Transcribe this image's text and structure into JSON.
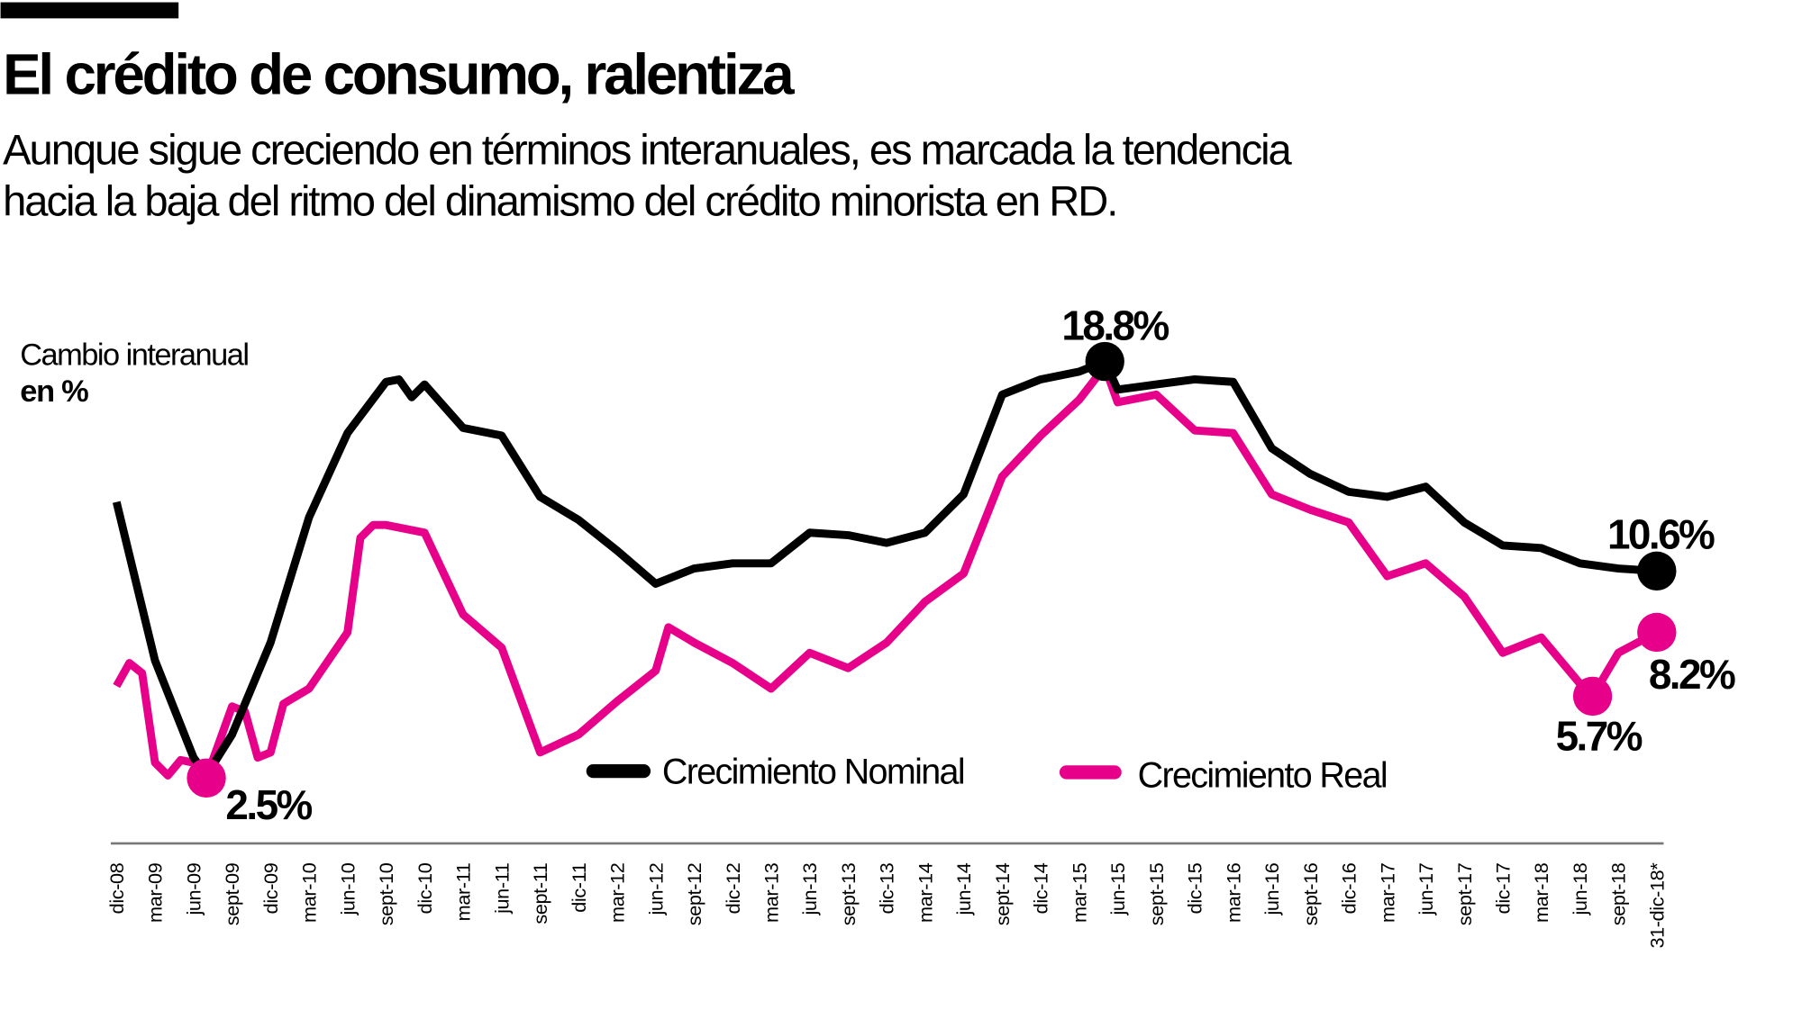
{
  "header": {
    "title": "El crédito de consumo, ralentiza",
    "subtitle_lines": [
      "Aunque sigue creciendo en términos interanuales, es marcada la tendencia",
      "hacia la baja del ritmo del dinamismo del crédito minorista en RD."
    ]
  },
  "colors": {
    "nominal": "#000000",
    "real": "#e6008a",
    "axis": "#777777"
  },
  "chart_data": {
    "type": "line",
    "title": "El crédito de consumo, ralentiza",
    "ylabel_line1": "Cambio interanual",
    "ylabel_line2": "en %",
    "x_tick_labels": [
      "dic-08",
      "mar-09",
      "jun-09",
      "sept-09",
      "dic-09",
      "mar-10",
      "jun-10",
      "sept-10",
      "dic-10",
      "mar-11",
      "jun-11",
      "sept-11",
      "dic-11",
      "mar-12",
      "jun-12",
      "sept-12",
      "dic-12",
      "mar-13",
      "jun-13",
      "sept-13",
      "dic-13",
      "mar-14",
      "jun-14",
      "sept-14",
      "dic-14",
      "mar-15",
      "jun-15",
      "sept-15",
      "dic-15",
      "mar-16",
      "jun-16",
      "sept-16",
      "dic-16",
      "mar-17",
      "jun-17",
      "sept-17",
      "dic-17",
      "mar-18",
      "jun-18",
      "sept-18",
      "31-dic-18*"
    ],
    "xlim": [
      "dic-08",
      "dic-18"
    ],
    "ylim": [
      1,
      20
    ],
    "grid": false,
    "legend": "bottom-center",
    "series": [
      {
        "name": "Crecimiento Nominal",
        "color": "#000000",
        "points": [
          [
            "dic-08",
            13.3
          ],
          [
            "mar-09",
            7.1
          ],
          [
            "jun-09",
            3.3
          ],
          [
            "jul-09",
            2.6
          ],
          [
            "sept-09",
            4.2
          ],
          [
            "dic-09",
            7.8
          ],
          [
            "mar-10",
            12.7
          ],
          [
            "jun-10",
            16.0
          ],
          [
            "sept-10",
            18.0
          ],
          [
            "oct-10",
            18.1
          ],
          [
            "nov-10",
            17.4
          ],
          [
            "dic-10",
            17.9
          ],
          [
            "mar-11",
            16.2
          ],
          [
            "jun-11",
            15.9
          ],
          [
            "sept-11",
            13.5
          ],
          [
            "dic-11",
            12.6
          ],
          [
            "mar-12",
            11.4
          ],
          [
            "jun-12",
            10.1
          ],
          [
            "sept-12",
            10.7
          ],
          [
            "dic-12",
            10.9
          ],
          [
            "mar-13",
            10.9
          ],
          [
            "jun-13",
            12.1
          ],
          [
            "sept-13",
            12.0
          ],
          [
            "dic-13",
            11.7
          ],
          [
            "mar-14",
            12.1
          ],
          [
            "jun-14",
            13.6
          ],
          [
            "sept-14",
            17.5
          ],
          [
            "dic-14",
            18.1
          ],
          [
            "mar-15",
            18.4
          ],
          [
            "may-15",
            18.8
          ],
          [
            "jun-15",
            17.7
          ],
          [
            "sept-15",
            17.9
          ],
          [
            "dic-15",
            18.1
          ],
          [
            "mar-16",
            18.0
          ],
          [
            "jun-16",
            15.4
          ],
          [
            "sept-16",
            14.4
          ],
          [
            "dic-16",
            13.7
          ],
          [
            "mar-17",
            13.5
          ],
          [
            "jun-17",
            13.9
          ],
          [
            "sept-17",
            12.5
          ],
          [
            "dic-17",
            11.6
          ],
          [
            "mar-18",
            11.5
          ],
          [
            "jun-18",
            10.9
          ],
          [
            "sept-18",
            10.7
          ],
          [
            "dic-18",
            10.6
          ]
        ]
      },
      {
        "name": "Crecimiento Real",
        "color": "#e6008a",
        "points": [
          [
            "dic-08",
            6.1
          ],
          [
            "ene-09",
            7.0
          ],
          [
            "feb-09",
            6.6
          ],
          [
            "mar-09",
            3.1
          ],
          [
            "abr-09",
            2.6
          ],
          [
            "may-09",
            3.2
          ],
          [
            "jun-09",
            3.1
          ],
          [
            "jul-09",
            2.5
          ],
          [
            "ago-09",
            3.9
          ],
          [
            "sept-09",
            5.3
          ],
          [
            "oct-09",
            5.1
          ],
          [
            "nov-09",
            3.3
          ],
          [
            "dic-09",
            3.5
          ],
          [
            "ene-10",
            5.4
          ],
          [
            "mar-10",
            6.0
          ],
          [
            "jun-10",
            8.2
          ],
          [
            "jul-10",
            11.9
          ],
          [
            "ago-10",
            12.4
          ],
          [
            "sept-10",
            12.4
          ],
          [
            "dic-10",
            12.1
          ],
          [
            "mar-11",
            8.9
          ],
          [
            "jun-11",
            7.6
          ],
          [
            "sept-11",
            3.5
          ],
          [
            "dic-11",
            4.2
          ],
          [
            "mar-12",
            5.5
          ],
          [
            "jun-12",
            6.7
          ],
          [
            "jul-12",
            8.4
          ],
          [
            "sept-12",
            7.8
          ],
          [
            "dic-12",
            7.0
          ],
          [
            "mar-13",
            6.0
          ],
          [
            "jun-13",
            7.4
          ],
          [
            "sept-13",
            6.8
          ],
          [
            "dic-13",
            7.8
          ],
          [
            "mar-14",
            9.4
          ],
          [
            "jun-14",
            10.5
          ],
          [
            "sept-14",
            14.3
          ],
          [
            "dic-14",
            15.9
          ],
          [
            "mar-15",
            17.3
          ],
          [
            "may-15",
            18.6
          ],
          [
            "jun-15",
            17.2
          ],
          [
            "sept-15",
            17.5
          ],
          [
            "dic-15",
            16.1
          ],
          [
            "mar-16",
            16.0
          ],
          [
            "jun-16",
            13.6
          ],
          [
            "sept-16",
            13.0
          ],
          [
            "dic-16",
            12.5
          ],
          [
            "mar-17",
            10.4
          ],
          [
            "jun-17",
            10.9
          ],
          [
            "sept-17",
            9.6
          ],
          [
            "dic-17",
            7.4
          ],
          [
            "mar-18",
            8.0
          ],
          [
            "jun-18",
            6.2
          ],
          [
            "jul-18",
            5.7
          ],
          [
            "sept-18",
            7.4
          ],
          [
            "dic-18",
            8.2
          ]
        ]
      }
    ],
    "annotations": [
      {
        "label": "2.5%",
        "series": "Crecimiento Real",
        "x": "jul-09",
        "y": 2.5
      },
      {
        "label": "18.8%",
        "series": "Crecimiento Nominal",
        "x": "may-15",
        "y": 18.8
      },
      {
        "label": "10.6%",
        "series": "Crecimiento Nominal",
        "x": "dic-18",
        "y": 10.6
      },
      {
        "label": "5.7%",
        "series": "Crecimiento Real",
        "x": "jul-18",
        "y": 5.7
      },
      {
        "label": "8.2%",
        "series": "Crecimiento Real",
        "x": "dic-18",
        "y": 8.2
      }
    ]
  }
}
